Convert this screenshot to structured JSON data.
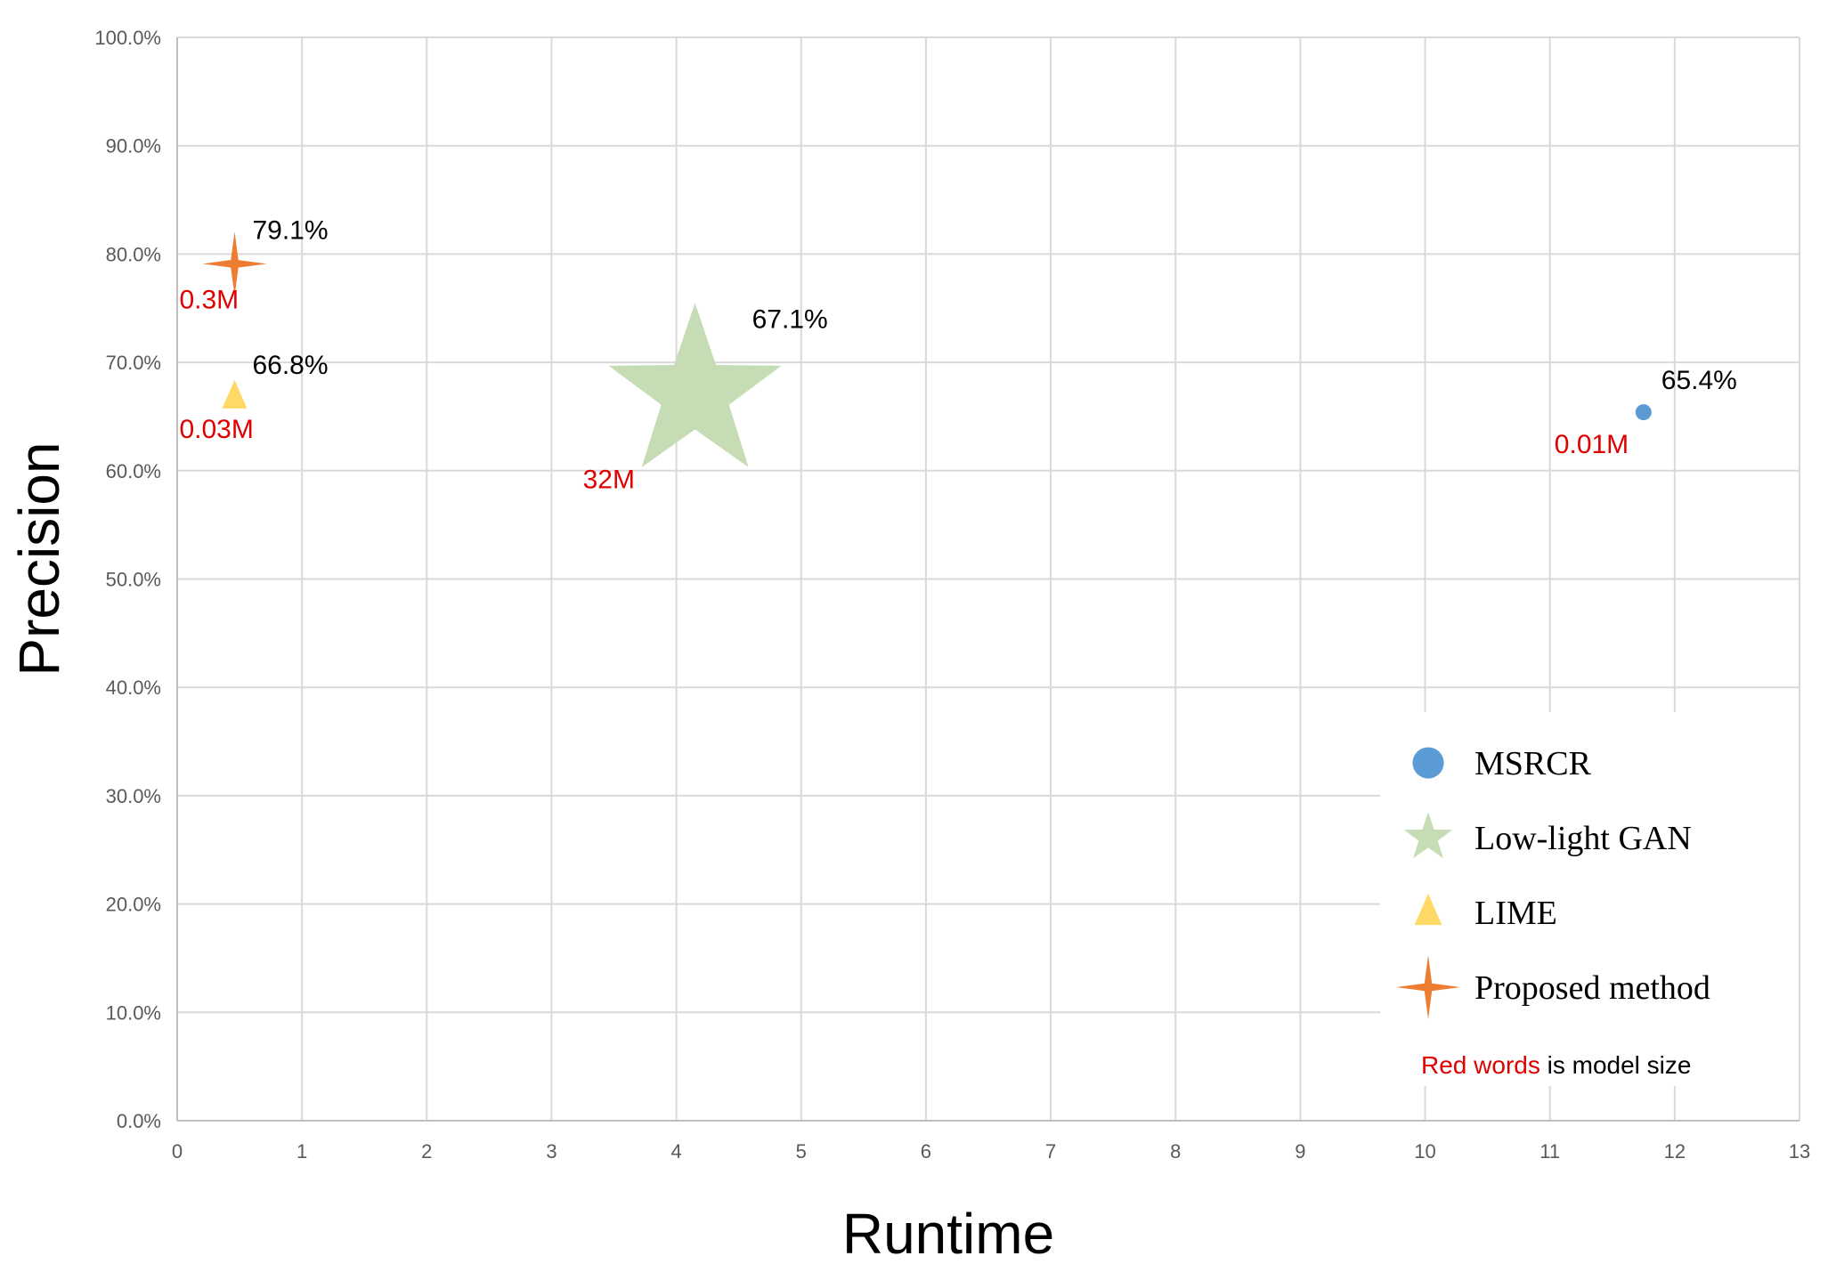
{
  "chart_data": {
    "type": "scatter",
    "xlabel": "Runtime",
    "ylabel": "Precision",
    "xlim": [
      0,
      13
    ],
    "ylim": [
      0,
      100
    ],
    "x_ticks": [
      "0",
      "1",
      "2",
      "3",
      "4",
      "5",
      "6",
      "7",
      "8",
      "9",
      "10",
      "11",
      "12",
      "13"
    ],
    "y_ticks": [
      "0.0%",
      "10.0%",
      "20.0%",
      "30.0%",
      "40.0%",
      "50.0%",
      "60.0%",
      "70.0%",
      "80.0%",
      "90.0%",
      "100.0%"
    ],
    "grid": true,
    "legend_position": "bottom-right",
    "series": [
      {
        "name": "MSRCR",
        "marker": "circle",
        "color": "#5b9bd5",
        "x": 11.75,
        "y": 65.4,
        "value_label": "65.4%",
        "size_label": "0.01M"
      },
      {
        "name": "Low-light GAN",
        "marker": "star5",
        "color": "#c5dcb4",
        "x": 4.15,
        "y": 67.1,
        "value_label": "67.1%",
        "size_label": "32M"
      },
      {
        "name": "LIME",
        "marker": "triangle",
        "color": "#ffd966",
        "x": 0.46,
        "y": 66.8,
        "value_label": "66.8%",
        "size_label": "0.03M"
      },
      {
        "name": "Proposed method",
        "marker": "star4",
        "color": "#ed7d31",
        "x": 0.46,
        "y": 79.1,
        "value_label": "79.1%",
        "size_label": "0.3M"
      }
    ],
    "note": {
      "red_part": "Red words",
      "rest": " is model size"
    }
  }
}
